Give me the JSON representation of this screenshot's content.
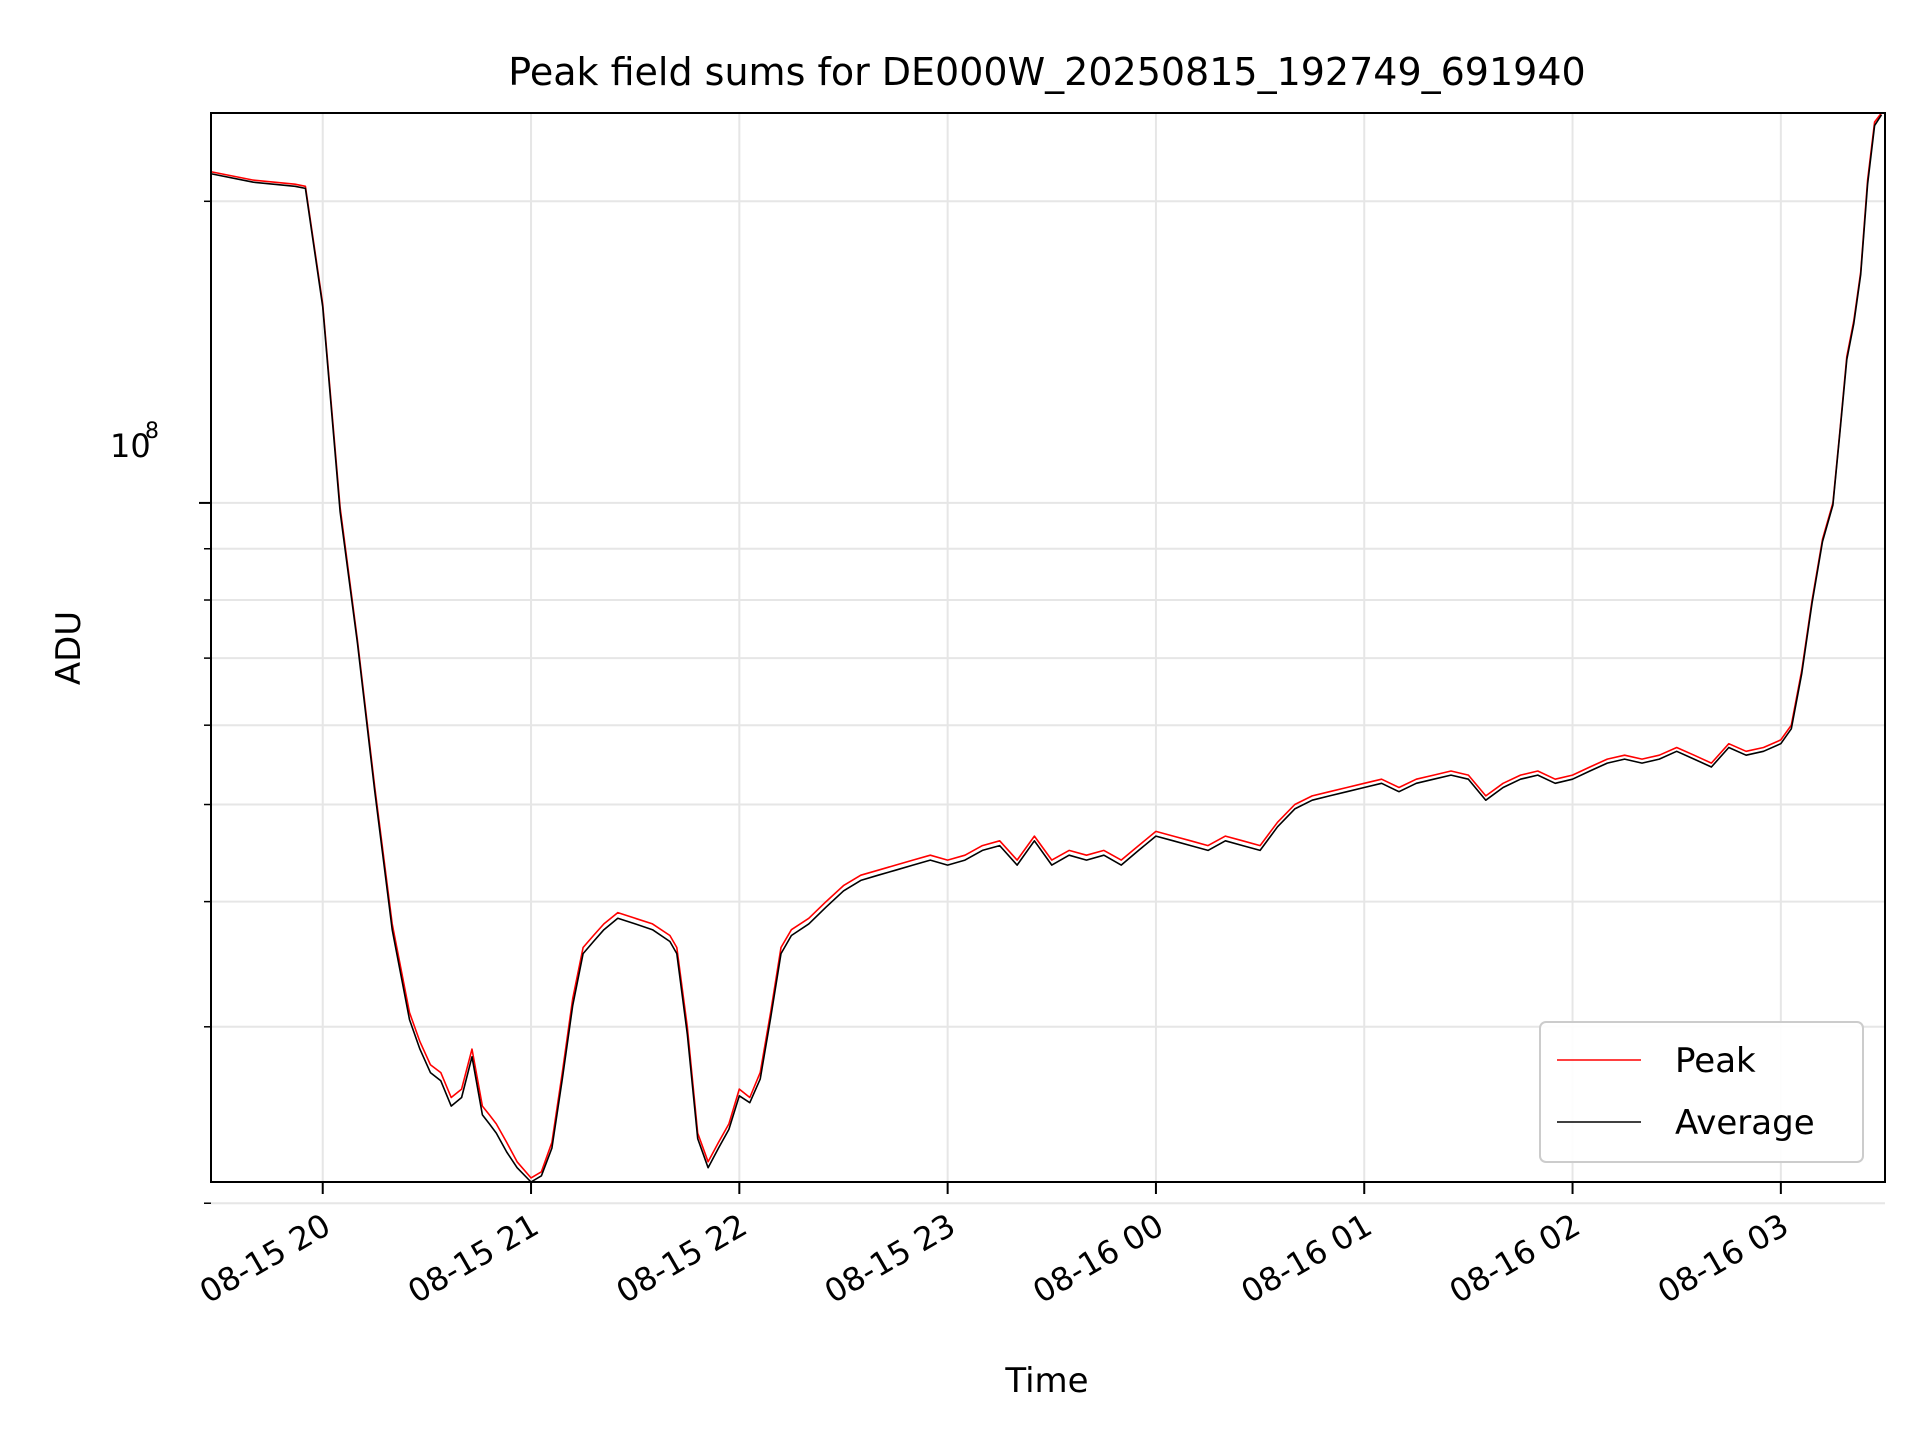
{
  "chart_data": {
    "type": "line",
    "title": "Peak field sums for DE000W_20250815_192749_691940",
    "xlabel": "Time",
    "ylabel": "ADU",
    "y_scale": "log",
    "ylim": [
      21000000,
      245000000
    ],
    "xlim": [
      "2025-08-15 19:27:49",
      "2025-08-16 03:30:00"
    ],
    "grid": true,
    "legend_position": "lower-right",
    "x_tick_labels": [
      "08-15 20",
      "08-15 21",
      "08-15 22",
      "08-15 23",
      "08-16 00",
      "08-16 01",
      "08-16 02",
      "08-16 03"
    ],
    "x_ticks": [
      "2025-08-15 20:00",
      "2025-08-15 21:00",
      "2025-08-15 22:00",
      "2025-08-15 23:00",
      "2025-08-16 00:00",
      "2025-08-16 01:00",
      "2025-08-16 02:00",
      "2025-08-16 03:00"
    ],
    "y_major_tick_label": {
      "base": "10",
      "exponent": "8"
    },
    "y_major_tick": 100000000,
    "y_minor_ticks": [
      20000000,
      30000000,
      40000000,
      50000000,
      60000000,
      70000000,
      80000000,
      90000000,
      200000000
    ],
    "series": [
      {
        "name": "Peak",
        "color": "#ff0000"
      },
      {
        "name": "Average",
        "color": "#000000"
      }
    ],
    "x": [
      "2025-08-15 19:28",
      "2025-08-15 19:40",
      "2025-08-15 19:52",
      "2025-08-15 19:55",
      "2025-08-15 20:00",
      "2025-08-15 20:05",
      "2025-08-15 20:10",
      "2025-08-15 20:15",
      "2025-08-15 20:20",
      "2025-08-15 20:25",
      "2025-08-15 20:28",
      "2025-08-15 20:31",
      "2025-08-15 20:34",
      "2025-08-15 20:37",
      "2025-08-15 20:40",
      "2025-08-15 20:43",
      "2025-08-15 20:46",
      "2025-08-15 20:48",
      "2025-08-15 20:50",
      "2025-08-15 20:53",
      "2025-08-15 20:56",
      "2025-08-15 21:00",
      "2025-08-15 21:03",
      "2025-08-15 21:06",
      "2025-08-15 21:09",
      "2025-08-15 21:12",
      "2025-08-15 21:15",
      "2025-08-15 21:18",
      "2025-08-15 21:21",
      "2025-08-15 21:25",
      "2025-08-15 21:30",
      "2025-08-15 21:35",
      "2025-08-15 21:40",
      "2025-08-15 21:42",
      "2025-08-15 21:45",
      "2025-08-15 21:48",
      "2025-08-15 21:51",
      "2025-08-15 21:54",
      "2025-08-15 21:57",
      "2025-08-15 22:00",
      "2025-08-15 22:03",
      "2025-08-15 22:06",
      "2025-08-15 22:09",
      "2025-08-15 22:12",
      "2025-08-15 22:15",
      "2025-08-15 22:20",
      "2025-08-15 22:25",
      "2025-08-15 22:30",
      "2025-08-15 22:35",
      "2025-08-15 22:40",
      "2025-08-15 22:45",
      "2025-08-15 22:50",
      "2025-08-15 22:55",
      "2025-08-15 23:00",
      "2025-08-15 23:05",
      "2025-08-15 23:10",
      "2025-08-15 23:15",
      "2025-08-15 23:20",
      "2025-08-15 23:25",
      "2025-08-15 23:30",
      "2025-08-15 23:35",
      "2025-08-15 23:40",
      "2025-08-15 23:45",
      "2025-08-15 23:50",
      "2025-08-15 23:55",
      "2025-08-16 00:00",
      "2025-08-16 00:05",
      "2025-08-16 00:10",
      "2025-08-16 00:15",
      "2025-08-16 00:20",
      "2025-08-16 00:25",
      "2025-08-16 00:30",
      "2025-08-16 00:35",
      "2025-08-16 00:40",
      "2025-08-16 00:45",
      "2025-08-16 00:50",
      "2025-08-16 00:55",
      "2025-08-16 01:00",
      "2025-08-16 01:05",
      "2025-08-16 01:10",
      "2025-08-16 01:15",
      "2025-08-16 01:20",
      "2025-08-16 01:25",
      "2025-08-16 01:30",
      "2025-08-16 01:35",
      "2025-08-16 01:40",
      "2025-08-16 01:45",
      "2025-08-16 01:50",
      "2025-08-16 01:55",
      "2025-08-16 02:00",
      "2025-08-16 02:05",
      "2025-08-16 02:10",
      "2025-08-16 02:15",
      "2025-08-16 02:20",
      "2025-08-16 02:25",
      "2025-08-16 02:30",
      "2025-08-16 02:35",
      "2025-08-16 02:40",
      "2025-08-16 02:45",
      "2025-08-16 02:50",
      "2025-08-16 02:55",
      "2025-08-16 03:00",
      "2025-08-16 03:03",
      "2025-08-16 03:06",
      "2025-08-16 03:09",
      "2025-08-16 03:12",
      "2025-08-16 03:15",
      "2025-08-16 03:17",
      "2025-08-16 03:19",
      "2025-08-16 03:21",
      "2025-08-16 03:23",
      "2025-08-16 03:25",
      "2025-08-16 03:27",
      "2025-08-16 03:29"
    ],
    "peak_values": [
      214000000,
      210000000,
      208000000,
      207000000,
      158000000,
      99000000,
      73000000,
      52000000,
      38000000,
      31000000,
      29000000,
      27500000,
      27000000,
      25500000,
      26000000,
      28500000,
      25000000,
      24500000,
      24000000,
      23000000,
      22000000,
      21200000,
      21500000,
      23000000,
      27000000,
      32000000,
      36000000,
      37000000,
      38000000,
      39000000,
      38500000,
      38000000,
      37000000,
      36000000,
      30000000,
      23500000,
      22000000,
      23000000,
      24000000,
      26000000,
      25500000,
      27000000,
      31000000,
      36000000,
      37500000,
      38500000,
      40000000,
      41500000,
      42500000,
      43000000,
      43500000,
      44000000,
      44500000,
      44000000,
      44500000,
      45500000,
      46000000,
      44000000,
      46500000,
      44000000,
      45000000,
      44500000,
      45000000,
      44000000,
      45500000,
      47000000,
      46500000,
      46000000,
      45500000,
      46500000,
      46000000,
      45500000,
      48000000,
      50000000,
      51000000,
      51500000,
      52000000,
      52500000,
      53000000,
      52000000,
      53000000,
      53500000,
      54000000,
      53500000,
      51000000,
      52500000,
      53500000,
      54000000,
      53000000,
      53500000,
      54500000,
      55500000,
      56000000,
      55500000,
      56000000,
      57000000,
      56000000,
      55000000,
      57500000,
      56500000,
      57000000,
      58000000,
      60000000,
      68000000,
      80000000,
      92000000,
      100000000,
      118000000,
      140000000,
      152000000,
      170000000,
      210000000,
      240000000,
      245000000
    ],
    "average_values": [
      213000000,
      209000000,
      207000000,
      206000000,
      157000000,
      98000000,
      72500000,
      51500000,
      37500000,
      30500000,
      28500000,
      27000000,
      26500000,
      25000000,
      25500000,
      28000000,
      24500000,
      24000000,
      23500000,
      22500000,
      21700000,
      21000000,
      21300000,
      22700000,
      26600000,
      31500000,
      35500000,
      36500000,
      37500000,
      38500000,
      38000000,
      37500000,
      36500000,
      35500000,
      29500000,
      23200000,
      21700000,
      22700000,
      23700000,
      25600000,
      25200000,
      26600000,
      30600000,
      35500000,
      37000000,
      38000000,
      39500000,
      41000000,
      42000000,
      42500000,
      43000000,
      43500000,
      44000000,
      43500000,
      44000000,
      45000000,
      45500000,
      43500000,
      46000000,
      43500000,
      44500000,
      44000000,
      44500000,
      43500000,
      45000000,
      46500000,
      46000000,
      45500000,
      45000000,
      46000000,
      45500000,
      45000000,
      47500000,
      49500000,
      50500000,
      51000000,
      51500000,
      52000000,
      52500000,
      51500000,
      52500000,
      53000000,
      53500000,
      53000000,
      50500000,
      52000000,
      53000000,
      53500000,
      52500000,
      53000000,
      54000000,
      55000000,
      55500000,
      55000000,
      55500000,
      56500000,
      55500000,
      54500000,
      57000000,
      56000000,
      56500000,
      57500000,
      59500000,
      67500000,
      79500000,
      91500000,
      99500000,
      117500000,
      139000000,
      151000000,
      169000000,
      208000000,
      238000000,
      244000000
    ]
  }
}
